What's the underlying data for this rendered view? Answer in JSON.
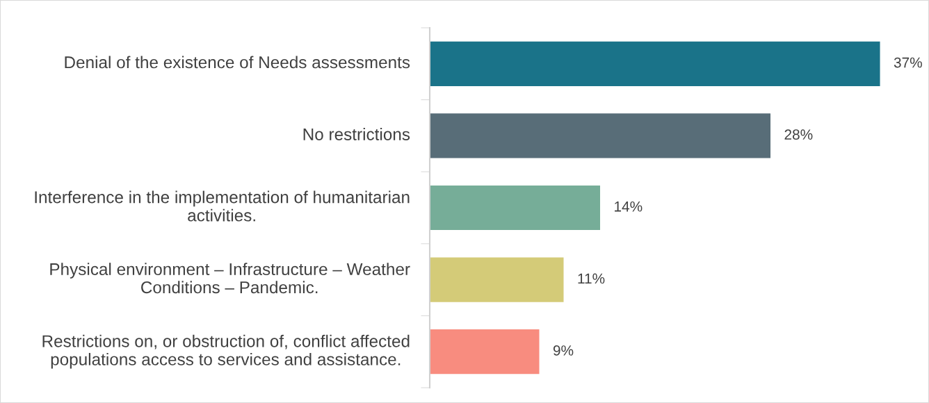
{
  "chart_data": {
    "type": "bar",
    "orientation": "horizontal",
    "categories": [
      "Denial of the existence of Needs assessments",
      "No restrictions",
      "Interference in the implementation of humanitarian activities.",
      "Physical environment – Infrastructure – Weather Conditions – Pandemic.",
      "Restrictions on, or obstruction of, conflict affected populations access to services and assistance."
    ],
    "values": [
      37,
      28,
      14,
      11,
      9
    ],
    "colors": [
      "#1a7389",
      "#586d78",
      "#76ad98",
      "#d4cb78",
      "#f88c7f"
    ],
    "value_labels": [
      "37%",
      "28%",
      "14%",
      "11%",
      "9%"
    ],
    "legend": false
  }
}
